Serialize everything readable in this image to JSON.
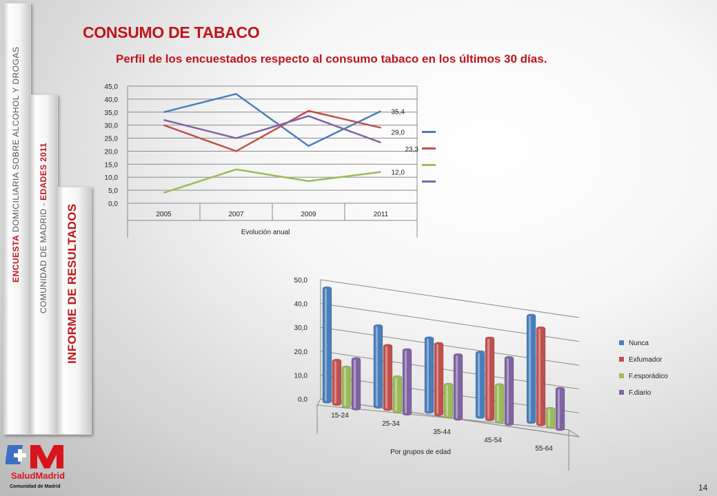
{
  "sidebar": {
    "band1": {
      "red": "ENCUESTA",
      "gray": "DOMICILIARIA SOBRE ALCOHOL Y DROGAS"
    },
    "band2": {
      "gray": "COMUNIDAD DE MADRID -",
      "red": "EDADES 2011"
    },
    "band3": {
      "red": "INFORME DE RESULTADOS"
    }
  },
  "title": "CONSUMO DE TABACO",
  "subtitle": "Perfil de los encuestados respecto al consumo tabaco en los últimos 30 días.",
  "page_number": "14",
  "logo": {
    "text": "SaludMadrid",
    "caption": "Comunidad de Madrid"
  },
  "colors": {
    "Nunca": "#4a7ebb",
    "Exfumador": "#c0504d",
    "F.esporadico": "#9bbb59",
    "F.diario": "#8064a2",
    "accent": "#c0141c"
  },
  "chart_data": [
    {
      "type": "line",
      "categories": [
        "2005",
        "2007",
        "2009",
        "2011"
      ],
      "xlabel": "Evolución anual",
      "ylim": [
        0,
        45
      ],
      "yticks": [
        "0,0",
        "5,0",
        "10,0",
        "15,0",
        "20,0",
        "25,0",
        "30,0",
        "35,0",
        "40,0",
        "45,0"
      ],
      "grid": true,
      "legend": "right",
      "series": [
        {
          "name": "Nunca",
          "values": [
            35.0,
            42.0,
            22.0,
            35.4
          ],
          "end_label": "35,4"
        },
        {
          "name": "Exfumador",
          "values": [
            30.0,
            20.0,
            35.5,
            29.0
          ],
          "end_label": "29,0"
        },
        {
          "name": "F.esporádico",
          "values": [
            4.0,
            13.0,
            8.5,
            12.0
          ],
          "end_label": "12,0"
        },
        {
          "name": "F.diario",
          "values": [
            32.0,
            25.0,
            33.5,
            23.3
          ],
          "end_label": "23,3"
        }
      ]
    },
    {
      "type": "bar",
      "categories": [
        "15-24",
        "25-34",
        "35-44",
        "45-54",
        "55-64"
      ],
      "xlabel": "Por grupos de edad",
      "ylim": [
        0,
        50
      ],
      "yticks": [
        "0,0",
        "10,0",
        "20,0",
        "30,0",
        "40,0",
        "50,0"
      ],
      "grid": true,
      "legend": "right",
      "series": [
        {
          "name": "Nunca",
          "values": [
            48.0,
            34.0,
            31.0,
            27.0,
            45.0
          ]
        },
        {
          "name": "Exfumador",
          "values": [
            17.5,
            26.0,
            29.0,
            33.5,
            40.0
          ]
        },
        {
          "name": "F.esporádico",
          "values": [
            15.0,
            13.0,
            12.0,
            14.0,
            6.0
          ]
        },
        {
          "name": "F.diario",
          "values": [
            19.0,
            25.0,
            25.0,
            26.0,
            15.0
          ]
        }
      ]
    }
  ]
}
